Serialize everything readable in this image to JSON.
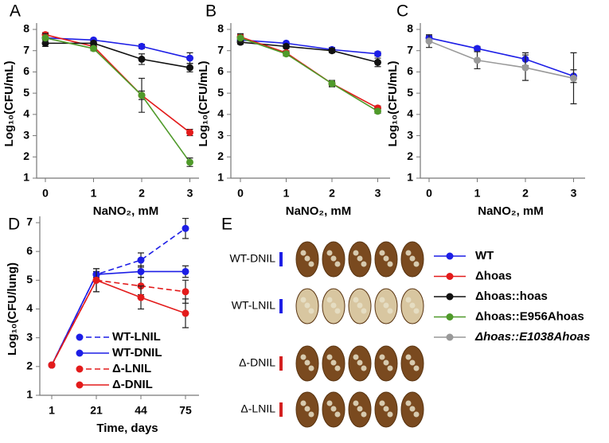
{
  "chart_data": [
    {
      "type": "line",
      "panel": "A",
      "ylabel": "Log₁₀(CFU/mL)",
      "xlabel": "NaNO₂, mM",
      "categories": [
        "0",
        "1",
        "2",
        "3"
      ],
      "ylim": [
        1,
        8
      ],
      "yticks": [
        1,
        2,
        3,
        4,
        5,
        6,
        7,
        8
      ],
      "series": [
        {
          "name": "WT",
          "color": "#1d1ee6",
          "values": [
            7.6,
            7.5,
            7.2,
            6.65
          ],
          "errors": [
            0.1,
            0.05,
            0.1,
            0.25
          ]
        },
        {
          "name": "Δhoas",
          "color": "#e31b1b",
          "values": [
            7.75,
            7.2,
            4.9,
            3.15
          ],
          "errors": [
            0.1,
            0.1,
            0.2,
            0.15
          ]
        },
        {
          "name": "Δhoas::hoas",
          "color": "#111111",
          "values": [
            7.35,
            7.35,
            6.6,
            6.2
          ],
          "errors": [
            0.15,
            0.1,
            0.25,
            0.2
          ]
        },
        {
          "name": "Δhoas::E956Ahoas",
          "color": "#4f9a2a",
          "values": [
            7.6,
            7.1,
            4.9,
            1.75
          ],
          "errors": [
            0.2,
            0.1,
            0.8,
            0.2
          ]
        }
      ]
    },
    {
      "type": "line",
      "panel": "B",
      "ylabel": "Log₁₀(CFU/mL)",
      "xlabel": "NaNO₂, mM",
      "categories": [
        "0",
        "1",
        "2",
        "3"
      ],
      "ylim": [
        1,
        8
      ],
      "yticks": [
        1,
        2,
        3,
        4,
        5,
        6,
        7,
        8
      ],
      "series": [
        {
          "name": "WT",
          "color": "#1d1ee6",
          "values": [
            7.5,
            7.35,
            7.05,
            6.85
          ],
          "errors": [
            0.1,
            0.05,
            0.1,
            0.1
          ]
        },
        {
          "name": "Δhoas::hoas",
          "color": "#111111",
          "values": [
            7.4,
            7.2,
            7.0,
            6.45
          ],
          "errors": [
            0.1,
            0.1,
            0.1,
            0.2
          ]
        },
        {
          "name": "Δhoas",
          "color": "#e31b1b",
          "values": [
            7.65,
            6.9,
            5.45,
            4.3
          ],
          "errors": [
            0.1,
            0.1,
            0.1,
            0.1
          ]
        },
        {
          "name": "Δhoas::E956Ahoas",
          "color": "#4f9a2a",
          "values": [
            7.6,
            6.85,
            5.45,
            4.15
          ],
          "errors": [
            0.2,
            0.1,
            0.15,
            0.1
          ]
        }
      ]
    },
    {
      "type": "line",
      "panel": "C",
      "ylabel": "Log₁₀(CFU/mL)",
      "xlabel": "NaNO₂, mM",
      "categories": [
        "0",
        "1",
        "2",
        "3"
      ],
      "ylim": [
        1,
        8
      ],
      "yticks": [
        1,
        2,
        3,
        4,
        5,
        6,
        7,
        8
      ],
      "series": [
        {
          "name": "WT",
          "color": "#1d1ee6",
          "values": [
            7.6,
            7.1,
            6.6,
            5.8
          ],
          "errors": [
            0.1,
            0.1,
            0.3,
            0.3
          ]
        },
        {
          "name": "Δhoas::E1038Ahoas",
          "color": "#999999",
          "values": [
            7.45,
            6.55,
            6.2,
            5.7
          ],
          "errors": [
            0.3,
            0.4,
            0.6,
            1.2
          ]
        }
      ]
    },
    {
      "type": "line",
      "panel": "D",
      "ylabel": "Log₁₀(CFU/lung)",
      "xlabel": "Time, days",
      "categories": [
        "1",
        "21",
        "44",
        "75"
      ],
      "ylim": [
        1,
        7
      ],
      "yticks": [
        1,
        2,
        3,
        4,
        5,
        6,
        7
      ],
      "series": [
        {
          "name": "WT-LNIL",
          "color": "#1d1ee6",
          "dashed": true,
          "values": [
            2.05,
            5.2,
            5.7,
            6.8
          ],
          "errors": [
            0.05,
            0.1,
            0.25,
            0.35
          ]
        },
        {
          "name": "WT-DNIL",
          "color": "#1d1ee6",
          "dashed": false,
          "values": [
            2.05,
            5.2,
            5.3,
            5.3
          ],
          "errors": [
            0.05,
            0.1,
            0.2,
            0.2
          ]
        },
        {
          "name": "Δ-LNIL",
          "color": "#e31b1b",
          "dashed": true,
          "values": [
            2.05,
            5.0,
            4.8,
            4.6
          ],
          "errors": [
            0.05,
            0.4,
            0.3,
            0.4
          ]
        },
        {
          "name": "Δ-DNIL",
          "color": "#e31b1b",
          "dashed": false,
          "values": [
            2.05,
            5.0,
            4.4,
            3.85
          ],
          "errors": [
            0.05,
            0.4,
            0.4,
            0.5
          ]
        }
      ]
    }
  ],
  "panel_e": {
    "label": "E",
    "rows": [
      {
        "label": "WT-DNIL",
        "color": "#1d1ee6"
      },
      {
        "label": "WT-LNIL",
        "color": "#1d1ee6"
      },
      {
        "label": "Δ-DNIL",
        "color": "#d42020"
      },
      {
        "label": "Δ-LNIL",
        "color": "#d42020"
      }
    ]
  }
}
